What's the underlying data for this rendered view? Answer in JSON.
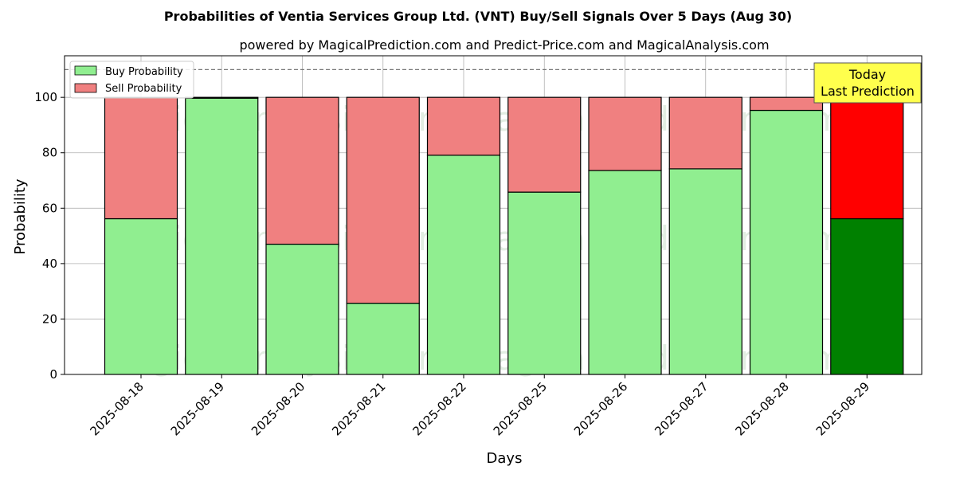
{
  "chart_data": {
    "type": "bar",
    "stacked": true,
    "title": "Probabilities of Ventia Services Group Ltd. (VNT) Buy/Sell Signals Over 5 Days (Aug 30)",
    "subtitle": "powered by MagicalPrediction.com and Predict-Price.com and MagicalAnalysis.com",
    "xlabel": "Days",
    "ylabel": "Probability",
    "ylim": [
      0,
      115
    ],
    "yticks": [
      0,
      20,
      40,
      60,
      80,
      100
    ],
    "reference_line": 110,
    "grid": true,
    "legend_position": "top-left",
    "categories": [
      "2025-08-18",
      "2025-08-19",
      "2025-08-20",
      "2025-08-21",
      "2025-08-22",
      "2025-08-25",
      "2025-08-26",
      "2025-08-27",
      "2025-08-28",
      "2025-08-29"
    ],
    "series": [
      {
        "name": "Buy Probability",
        "values": [
          56.2,
          99.7,
          47.0,
          25.7,
          79.1,
          65.8,
          73.6,
          74.2,
          95.3,
          56.2
        ],
        "color": "#90ee90",
        "highlight_color": "#008000"
      },
      {
        "name": "Sell Probability",
        "values": [
          43.8,
          0.3,
          53.0,
          74.3,
          20.9,
          34.2,
          26.4,
          25.8,
          4.7,
          43.8
        ],
        "color": "#f08080",
        "highlight_color": "#ff0000"
      }
    ],
    "highlight_index": 9,
    "annotation": {
      "line1": "Today",
      "line2": "Last Prediction",
      "color": "#ffff4d"
    },
    "watermarks": [
      "MagicalAnalysis.com",
      "MagicalPrediction.com",
      "MagicalAnalysis.com",
      "MagicalPrediction.com",
      "MagicalAnalysis.com",
      "MagicalPrediction.com"
    ]
  }
}
